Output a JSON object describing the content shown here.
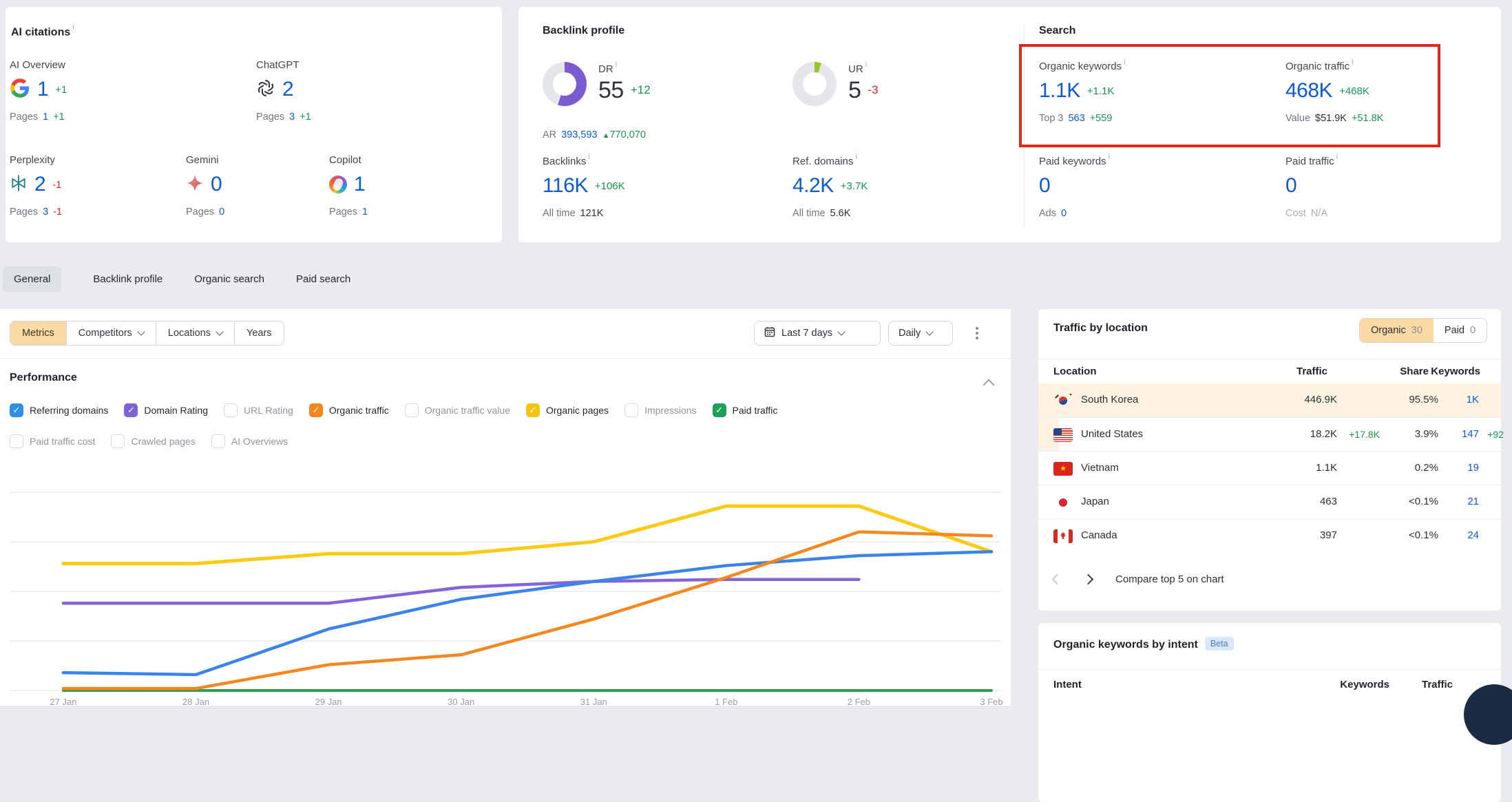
{
  "colors": {
    "blue": "#0b5ad1",
    "green": "#18944e",
    "red": "#df241c",
    "accent_orange": "#fbd9a4",
    "row_highlight": "#fdf1e1",
    "red_box": "#e3251c"
  },
  "icons": {
    "info": "i",
    "up_triangle": "▲",
    "check": "✓"
  },
  "ai_citations": {
    "title": "AI citations",
    "items": [
      {
        "label": "AI Overview",
        "icon": "google-icon",
        "value": "1",
        "delta": "+1",
        "delta_tone": "g",
        "pages_label": "Pages",
        "pages": "1",
        "pages_delta": "+1",
        "pages_delta_tone": "g"
      },
      {
        "label": "ChatGPT",
        "icon": "chatgpt-icon",
        "value": "2",
        "delta": "",
        "pages_label": "Pages",
        "pages": "3",
        "pages_delta": "+1",
        "pages_delta_tone": "g"
      },
      {
        "label": "Perplexity",
        "icon": "perplexity-icon",
        "value": "2",
        "delta": "-1",
        "delta_tone": "r",
        "pages_label": "Pages",
        "pages": "3",
        "pages_delta": "-1",
        "pages_delta_tone": "r"
      },
      {
        "label": "Gemini",
        "icon": "gemini-icon",
        "value": "0",
        "delta": "",
        "pages_label": "Pages",
        "pages": "0",
        "pages_delta": ""
      },
      {
        "label": "Copilot",
        "icon": "copilot-icon",
        "value": "1",
        "delta": "",
        "pages_label": "Pages",
        "pages": "1",
        "pages_delta": ""
      }
    ]
  },
  "backlink_profile": {
    "title": "Backlink profile",
    "dr": {
      "label": "DR",
      "value": "55",
      "delta": "+12",
      "percent": 55,
      "color": "#7a5cd0",
      "track": "#e4e6e9"
    },
    "ur": {
      "label": "UR",
      "value": "5",
      "delta": "-3",
      "percent": 5,
      "color": "#9ac42e",
      "track": "#e4e6e9"
    },
    "ar": {
      "label": "AR",
      "value": "393,593",
      "delta": "770,070"
    },
    "backlinks": {
      "label": "Backlinks",
      "value": "116K",
      "delta": "+106K",
      "alltime_label": "All time",
      "alltime_value": "121K"
    },
    "ref_domains": {
      "label": "Ref. domains",
      "value": "4.2K",
      "delta": "+3.7K",
      "alltime_label": "All time",
      "alltime_value": "5.6K"
    }
  },
  "search": {
    "title": "Search",
    "organic_keywords": {
      "label": "Organic keywords",
      "value": "1.1K",
      "delta": "+1.1K",
      "sub_label": "Top 3",
      "sub_value": "563",
      "sub_delta": "+559"
    },
    "organic_traffic": {
      "label": "Organic traffic",
      "value": "468K",
      "delta": "+468K",
      "sub_label": "Value",
      "sub_value": "$51.9K",
      "sub_delta": "+51.8K"
    },
    "paid_keywords": {
      "label": "Paid keywords",
      "value": "0",
      "sub_label": "Ads",
      "sub_value": "0"
    },
    "paid_traffic": {
      "label": "Paid traffic",
      "value": "0",
      "sub_label": "Cost",
      "sub_value": "N/A"
    }
  },
  "tabs": [
    {
      "label": "General",
      "active": true
    },
    {
      "label": "Backlink profile",
      "active": false
    },
    {
      "label": "Organic search",
      "active": false
    },
    {
      "label": "Paid search",
      "active": false
    }
  ],
  "toolbar": {
    "metrics": "Metrics",
    "competitors": "Competitors",
    "locations": "Locations",
    "years": "Years",
    "date_range": "Last 7 days",
    "granularity": "Daily"
  },
  "performance": {
    "title": "Performance",
    "checkboxes": [
      {
        "label": "Referring domains",
        "checked": true,
        "color": "#2e90e5"
      },
      {
        "label": "Domain Rating",
        "checked": true,
        "color": "#7c63d8"
      },
      {
        "label": "URL Rating",
        "checked": false,
        "color": ""
      },
      {
        "label": "Organic traffic",
        "checked": true,
        "color": "#f6871f"
      },
      {
        "label": "Organic traffic value",
        "checked": false,
        "color": ""
      },
      {
        "label": "Organic pages",
        "checked": true,
        "color": "#f7c414"
      },
      {
        "label": "Impressions",
        "checked": false,
        "color": ""
      },
      {
        "label": "Paid traffic",
        "checked": true,
        "color": "#1fa05a"
      },
      {
        "label": "Paid traffic cost",
        "checked": false,
        "color": ""
      },
      {
        "label": "Crawled pages",
        "checked": false,
        "color": ""
      },
      {
        "label": "AI Overviews",
        "checked": false,
        "color": ""
      }
    ]
  },
  "chart_data": {
    "type": "line",
    "x": [
      "27 Jan",
      "28 Jan",
      "29 Jan",
      "30 Jan",
      "31 Jan",
      "1 Feb",
      "2 Feb",
      "3 Feb"
    ],
    "xlabel": "",
    "ylabel": "",
    "ylim": [
      0,
      100
    ],
    "grid": true,
    "legend": "none",
    "note": "No y-axis tick labels are visible in the screenshot; values are relative estimates (0-100 = fraction of plot height).",
    "series": [
      {
        "name": "Paid traffic",
        "color": "#2e9e54",
        "width": 4,
        "values": [
          0,
          0,
          0,
          0,
          0,
          0,
          0,
          0
        ]
      },
      {
        "name": "Domain Rating",
        "color": "#8464d8",
        "width": 4.5,
        "values": [
          44,
          44,
          44,
          52,
          55,
          56,
          56,
          null
        ]
      },
      {
        "name": "Organic pages",
        "color": "#fcca12",
        "width": 5,
        "values": [
          64,
          64,
          69,
          69,
          75,
          93,
          93,
          70
        ]
      },
      {
        "name": "Referring domains",
        "color": "#3a83ea",
        "width": 4.5,
        "values": [
          9,
          8,
          31,
          46,
          55,
          63,
          68,
          70
        ]
      },
      {
        "name": "Organic traffic",
        "color": "#f6871f",
        "width": 4.5,
        "values": [
          1,
          1,
          13,
          18,
          36,
          57,
          80,
          78
        ]
      }
    ]
  },
  "traffic_by_location": {
    "title": "Traffic by location",
    "toggle": {
      "organic_label": "Organic",
      "organic_count": "30",
      "paid_label": "Paid",
      "paid_count": "0"
    },
    "columns": [
      "Location",
      "Traffic",
      "Share",
      "Keywords"
    ],
    "rows": [
      {
        "location": "South Korea",
        "flag": "kr",
        "traffic": "446.9K",
        "traffic_delta": "",
        "share": "95.5%",
        "keywords": "1K",
        "keywords_delta": "",
        "highlight": "full"
      },
      {
        "location": "United States",
        "flag": "us",
        "traffic": "18.2K",
        "traffic_delta": "+17.8K",
        "share": "3.9%",
        "keywords": "147",
        "keywords_delta": "+92",
        "highlight": "edge"
      },
      {
        "location": "Vietnam",
        "flag": "vn",
        "traffic": "1.1K",
        "traffic_delta": "",
        "share": "0.2%",
        "keywords": "19",
        "keywords_delta": "",
        "highlight": ""
      },
      {
        "location": "Japan",
        "flag": "jp",
        "traffic": "463",
        "traffic_delta": "",
        "share": "<0.1%",
        "keywords": "21",
        "keywords_delta": "",
        "highlight": ""
      },
      {
        "location": "Canada",
        "flag": "ca",
        "traffic": "397",
        "traffic_delta": "",
        "share": "<0.1%",
        "keywords": "24",
        "keywords_delta": "",
        "highlight": ""
      }
    ],
    "footer": "Compare top 5 on chart"
  },
  "keywords_by_intent": {
    "title": "Organic keywords by intent",
    "badge": "Beta",
    "columns": [
      "Intent",
      "Keywords",
      "Traffic"
    ]
  }
}
